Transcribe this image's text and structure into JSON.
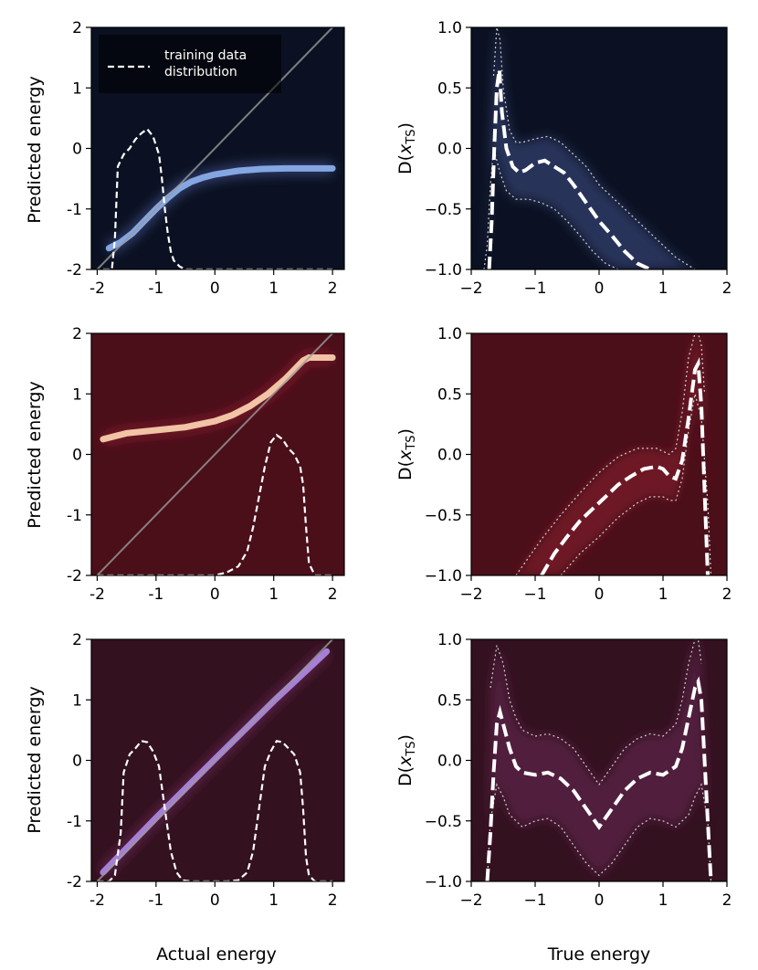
{
  "chart_data": [
    {
      "type": "heatmap",
      "panel": "row1-left",
      "colormap": "blue",
      "xlabel": "",
      "ylabel": "Predicted energy",
      "xlim": [
        -2.1,
        2.2
      ],
      "ylim": [
        -2,
        2
      ],
      "xticks": [
        "-2",
        "-1",
        "0",
        "1",
        "2"
      ],
      "yticks": [
        "-2",
        "-1",
        "0",
        "1",
        "2"
      ],
      "legend": {
        "label": "training data distribution",
        "label_lines": [
          "training data",
          "distribution"
        ],
        "placement": "top-left"
      },
      "identity_line": true,
      "prediction_curve": {
        "x": [
          -1.8,
          -1.6,
          -1.4,
          -1.2,
          -1.0,
          -0.8,
          -0.6,
          -0.4,
          -0.2,
          0,
          0.4,
          0.8,
          1.2,
          1.6,
          2.0
        ],
        "y": [
          -1.65,
          -1.55,
          -1.4,
          -1.2,
          -1.0,
          -0.82,
          -0.66,
          -0.55,
          -0.48,
          -0.43,
          -0.37,
          -0.34,
          -0.33,
          -0.33,
          -0.33
        ]
      },
      "training_distribution": {
        "x": [
          -1.9,
          -1.75,
          -1.7,
          -1.65,
          -1.55,
          -1.45,
          -1.35,
          -1.25,
          -1.15,
          -1.05,
          -0.95,
          -0.9,
          -0.85,
          -0.8,
          -0.75,
          -0.7,
          -0.6,
          -0.5,
          -0.4,
          -0.2,
          0.5,
          1.0,
          1.5,
          2.0
        ],
        "y": [
          -2,
          -2,
          -1.5,
          -0.3,
          -0.1,
          0.0,
          0.15,
          0.25,
          0.32,
          0.2,
          -0.1,
          -0.5,
          -1.0,
          -1.4,
          -1.7,
          -1.85,
          -1.95,
          -2,
          -2,
          -2,
          -2,
          -2,
          -2,
          -2
        ]
      }
    },
    {
      "type": "heatmap",
      "panel": "row1-right",
      "colormap": "blue",
      "xlabel": "",
      "ylabel": "D(x_TS)",
      "xlim": [
        -2,
        2
      ],
      "ylim": [
        -1,
        1
      ],
      "xticks": [
        "−2",
        "−1",
        "0",
        "1",
        "2"
      ],
      "yticks": [
        "−1.0",
        "−0.5",
        "0.0",
        "0.5",
        "1.0"
      ],
      "mean_curve": {
        "x": [
          -1.72,
          -1.68,
          -1.64,
          -1.6,
          -1.56,
          -1.52,
          -1.45,
          -1.35,
          -1.25,
          -1.15,
          -1.0,
          -0.85,
          -0.7,
          -0.55,
          -0.4,
          -0.2,
          0,
          0.2,
          0.4,
          0.6,
          0.8
        ],
        "y": [
          -1.0,
          -0.6,
          0.0,
          0.5,
          0.65,
          0.3,
          0.0,
          -0.15,
          -0.2,
          -0.18,
          -0.12,
          -0.1,
          -0.15,
          -0.2,
          -0.3,
          -0.45,
          -0.6,
          -0.72,
          -0.85,
          -0.95,
          -1.0
        ]
      },
      "band_upper": {
        "x": [
          -1.65,
          -1.6,
          -1.55,
          -1.5,
          -1.4,
          -1.3,
          -1.2,
          -1.0,
          -0.8,
          -0.6,
          -0.4,
          -0.2,
          0,
          0.3,
          0.6,
          0.9,
          1.2,
          1.5
        ],
        "y": [
          0.6,
          1.0,
          0.9,
          0.5,
          0.15,
          0.05,
          0.05,
          0.08,
          0.1,
          0.05,
          -0.05,
          -0.15,
          -0.3,
          -0.45,
          -0.6,
          -0.75,
          -0.9,
          -1.0
        ]
      },
      "band_lower": {
        "x": [
          -1.8,
          -1.75,
          -1.7,
          -1.65,
          -1.55,
          -1.45,
          -1.3,
          -1.1,
          -0.9,
          -0.7,
          -0.5,
          -0.3,
          -0.1,
          0.1,
          0.3
        ],
        "y": [
          -1.0,
          -0.8,
          -0.3,
          0.0,
          -0.2,
          -0.35,
          -0.42,
          -0.42,
          -0.45,
          -0.5,
          -0.6,
          -0.72,
          -0.85,
          -0.95,
          -1.0
        ]
      }
    },
    {
      "type": "heatmap",
      "panel": "row2-left",
      "colormap": "red",
      "xlabel": "",
      "ylabel": "Predicted energy",
      "xlim": [
        -2.1,
        2.2
      ],
      "ylim": [
        -2,
        2
      ],
      "xticks": [
        "-2",
        "-1",
        "0",
        "1",
        "2"
      ],
      "yticks": [
        "-2",
        "-1",
        "0",
        "1",
        "2"
      ],
      "identity_line": true,
      "prediction_curve": {
        "x": [
          -1.9,
          -1.5,
          -1.0,
          -0.5,
          0,
          0.3,
          0.6,
          0.9,
          1.2,
          1.4,
          1.5,
          1.6,
          2.0
        ],
        "y": [
          0.25,
          0.35,
          0.4,
          0.45,
          0.55,
          0.65,
          0.8,
          1.0,
          1.25,
          1.45,
          1.55,
          1.6,
          1.6
        ]
      },
      "training_distribution": {
        "x": [
          -2.0,
          -1.0,
          0,
          0.2,
          0.4,
          0.55,
          0.65,
          0.75,
          0.85,
          0.95,
          1.05,
          1.15,
          1.25,
          1.35,
          1.45,
          1.5,
          1.55,
          1.6,
          1.7,
          2.0
        ],
        "y": [
          -2,
          -2,
          -2,
          -1.95,
          -1.85,
          -1.6,
          -1.2,
          -0.7,
          -0.2,
          0.2,
          0.32,
          0.25,
          0.1,
          0.0,
          -0.2,
          -0.5,
          -1.2,
          -1.8,
          -2,
          -2
        ]
      }
    },
    {
      "type": "heatmap",
      "panel": "row2-right",
      "colormap": "red",
      "xlabel": "",
      "ylabel": "D(x_TS)",
      "xlim": [
        -2,
        2
      ],
      "ylim": [
        -1,
        1
      ],
      "xticks": [
        "−2",
        "−1",
        "0",
        "1",
        "2"
      ],
      "yticks": [
        "−1.0",
        "−0.5",
        "0.0",
        "0.5",
        "1.0"
      ],
      "mean_curve": {
        "x": [
          -0.9,
          -0.7,
          -0.5,
          -0.3,
          -0.1,
          0.1,
          0.3,
          0.5,
          0.7,
          0.9,
          1.0,
          1.1,
          1.2,
          1.3,
          1.4,
          1.5,
          1.55,
          1.6,
          1.65,
          1.7
        ],
        "y": [
          -1.0,
          -0.82,
          -0.68,
          -0.55,
          -0.45,
          -0.35,
          -0.25,
          -0.18,
          -0.12,
          -0.1,
          -0.12,
          -0.18,
          -0.2,
          -0.05,
          0.3,
          0.7,
          0.75,
          0.4,
          -0.3,
          -1.0
        ]
      },
      "band_upper": {
        "x": [
          -1.3,
          -1.1,
          -0.9,
          -0.6,
          -0.3,
          0,
          0.3,
          0.6,
          0.9,
          1.1,
          1.2,
          1.3,
          1.4,
          1.5,
          1.55,
          1.6,
          1.65
        ],
        "y": [
          -1.0,
          -0.85,
          -0.7,
          -0.5,
          -0.32,
          -0.15,
          -0.02,
          0.05,
          0.05,
          0.0,
          0.05,
          0.35,
          0.8,
          1.0,
          1.0,
          0.9,
          0.5
        ]
      },
      "band_lower": {
        "x": [
          -0.6,
          -0.3,
          0,
          0.3,
          0.6,
          0.8,
          1.0,
          1.1,
          1.2,
          1.3,
          1.4,
          1.5,
          1.6,
          1.7,
          1.75
        ],
        "y": [
          -1.0,
          -0.82,
          -0.68,
          -0.52,
          -0.4,
          -0.35,
          -0.35,
          -0.38,
          -0.38,
          -0.2,
          0.2,
          0.5,
          0.3,
          -0.4,
          -1.0
        ]
      }
    },
    {
      "type": "heatmap",
      "panel": "row3-left",
      "colormap": "purple",
      "xlabel": "Actual energy",
      "ylabel": "Predicted energy",
      "xlim": [
        -2.1,
        2.2
      ],
      "ylim": [
        -2,
        2
      ],
      "xticks": [
        "-2",
        "-1",
        "0",
        "1",
        "2"
      ],
      "yticks": [
        "-2",
        "-1",
        "0",
        "1",
        "2"
      ],
      "identity_line": true,
      "prediction_curve": {
        "x": [
          -1.9,
          -1.0,
          0,
          1.0,
          1.9
        ],
        "y": [
          -1.85,
          -0.95,
          0.02,
          0.98,
          1.8
        ]
      },
      "training_distribution": {
        "x": [
          -2.0,
          -1.8,
          -1.7,
          -1.6,
          -1.55,
          -1.45,
          -1.35,
          -1.25,
          -1.15,
          -1.05,
          -0.95,
          -0.85,
          -0.75,
          -0.65,
          -0.55,
          -0.4,
          -0.2,
          0,
          0.2,
          0.4,
          0.55,
          0.65,
          0.75,
          0.85,
          0.95,
          1.05,
          1.15,
          1.25,
          1.35,
          1.45,
          1.5,
          1.55,
          1.6,
          1.7,
          2.0
        ],
        "y": [
          -2,
          -2,
          -1.9,
          -1.2,
          -0.2,
          0.1,
          0.2,
          0.32,
          0.3,
          0.15,
          -0.1,
          -0.8,
          -1.5,
          -1.85,
          -1.98,
          -2,
          -2,
          -2,
          -2,
          -1.98,
          -1.85,
          -1.5,
          -0.8,
          -0.1,
          0.15,
          0.32,
          0.3,
          0.2,
          0.1,
          -0.2,
          -0.8,
          -1.6,
          -1.9,
          -2,
          -2
        ]
      }
    },
    {
      "type": "heatmap",
      "panel": "row3-right",
      "colormap": "purple",
      "xlabel": "True energy",
      "ylabel": "D(x_TS)",
      "xlim": [
        -2,
        2
      ],
      "ylim": [
        -1,
        1
      ],
      "xticks": [
        "−2",
        "−1",
        "0",
        "1",
        "2"
      ],
      "yticks": [
        "−1.0",
        "−0.5",
        "0.0",
        "0.5",
        "1.0"
      ],
      "mean_curve": {
        "x": [
          -1.75,
          -1.7,
          -1.65,
          -1.6,
          -1.55,
          -1.5,
          -1.4,
          -1.3,
          -1.2,
          -1.0,
          -0.8,
          -0.6,
          -0.4,
          -0.2,
          0,
          0.2,
          0.4,
          0.6,
          0.8,
          1.0,
          1.2,
          1.3,
          1.4,
          1.5,
          1.55,
          1.6,
          1.65,
          1.7,
          1.75
        ],
        "y": [
          -1.0,
          -0.6,
          -0.1,
          0.3,
          0.4,
          0.3,
          0.1,
          -0.05,
          -0.1,
          -0.12,
          -0.1,
          -0.15,
          -0.25,
          -0.4,
          -0.55,
          -0.4,
          -0.25,
          -0.15,
          -0.1,
          -0.12,
          -0.05,
          0.1,
          0.35,
          0.6,
          0.65,
          0.5,
          0.0,
          -0.5,
          -1.0
        ]
      },
      "band_upper": {
        "x": [
          -1.7,
          -1.6,
          -1.5,
          -1.4,
          -1.3,
          -1.2,
          -1.0,
          -0.8,
          -0.6,
          -0.4,
          -0.2,
          0,
          0.2,
          0.4,
          0.6,
          0.8,
          1.0,
          1.2,
          1.3,
          1.4,
          1.5,
          1.55,
          1.6
        ],
        "y": [
          0.6,
          0.95,
          0.8,
          0.5,
          0.35,
          0.25,
          0.2,
          0.22,
          0.18,
          0.1,
          -0.05,
          -0.2,
          -0.05,
          0.1,
          0.18,
          0.22,
          0.2,
          0.3,
          0.5,
          0.8,
          1.0,
          1.0,
          0.8
        ]
      },
      "band_lower": {
        "x": [
          -1.75,
          -1.7,
          -1.6,
          -1.5,
          -1.4,
          -1.2,
          -1.0,
          -0.8,
          -0.6,
          -0.4,
          -0.2,
          0,
          0.2,
          0.4,
          0.6,
          0.8,
          1.0,
          1.2,
          1.4,
          1.5,
          1.6,
          1.7,
          1.75
        ],
        "y": [
          -1.0,
          -0.5,
          -0.2,
          -0.3,
          -0.45,
          -0.55,
          -0.5,
          -0.48,
          -0.55,
          -0.7,
          -0.85,
          -0.95,
          -0.85,
          -0.7,
          -0.55,
          -0.48,
          -0.5,
          -0.55,
          -0.45,
          -0.3,
          -0.2,
          -0.5,
          -1.0
        ]
      }
    }
  ],
  "colors": {
    "blue": {
      "bg": "#0b1122",
      "mid": "#3f4f86",
      "hi": "#8fb4f2"
    },
    "red": {
      "bg": "#4a0f19",
      "mid": "#8a1e30",
      "hi": "#ffd7b5"
    },
    "purple": {
      "bg": "#33111f",
      "mid": "#6a2a55",
      "hi": "#b08ae8"
    },
    "line_white": "#ffffff",
    "identity_line": "#9a9a9a"
  }
}
